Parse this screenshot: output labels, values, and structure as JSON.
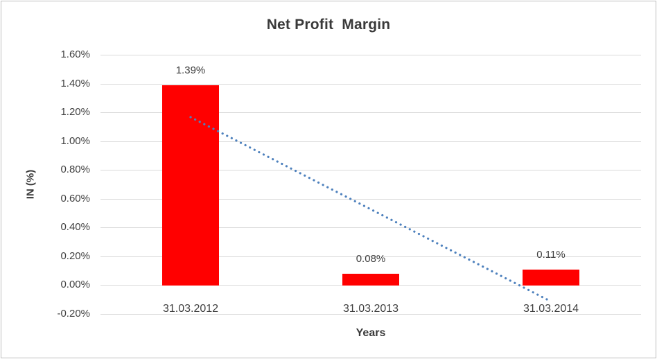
{
  "chart_data": {
    "type": "bar",
    "title": "Net Profit  Margin",
    "xlabel": "Years",
    "ylabel": "IN (%)",
    "categories": [
      "31.03.2012",
      "31.03.2013",
      "31.03.2014"
    ],
    "series": [
      {
        "name": "Net Profit Margin",
        "values": [
          1.39,
          0.08,
          0.11
        ]
      }
    ],
    "value_labels": [
      "1.39%",
      "0.08%",
      "0.11%"
    ],
    "y_axis": {
      "min": -0.2,
      "max": 1.6,
      "step": 0.2,
      "tick_labels": [
        "-0.20%",
        "0.00%",
        "0.20%",
        "0.40%",
        "0.60%",
        "0.80%",
        "1.00%",
        "1.20%",
        "1.40%",
        "1.60%"
      ],
      "unit": "%"
    },
    "grid": true,
    "legend": "none",
    "trendline": {
      "type": "linear",
      "style": "dotted",
      "start_value": 1.1667,
      "end_value": -0.1133
    },
    "colors": {
      "bar": "#FF0000",
      "trendline": "#4E81BD",
      "gridline": "#D9D9D9",
      "text": "#3F3F3F",
      "frame_border": "#BDBDBD"
    }
  }
}
